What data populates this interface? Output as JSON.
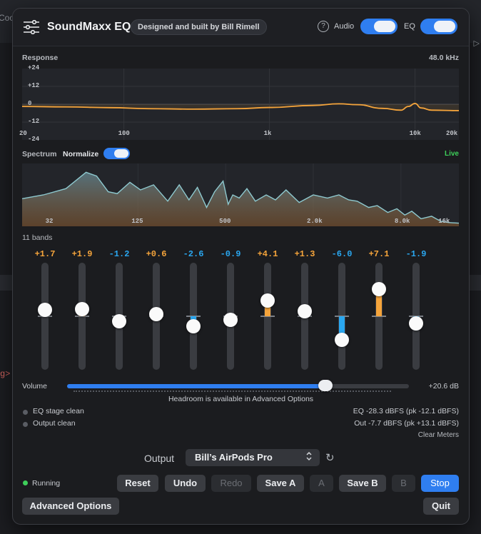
{
  "background": {
    "left_text": "Coo",
    "left_code": "g>",
    "right_arrow": "▷"
  },
  "header": {
    "title": "SoundMaxx EQ",
    "badge": "Designed and built by Bill Rimell",
    "audio_label": "Audio",
    "audio_on": true,
    "eq_label": "EQ",
    "eq_on": true,
    "help_glyph": "?"
  },
  "response": {
    "label": "Response",
    "rate": "48.0 kHz",
    "y_ticks": [
      "+24",
      "+12",
      "0",
      "-12",
      "-24"
    ],
    "x_ticks": [
      "20",
      "100",
      "1k",
      "10k",
      "20k"
    ]
  },
  "spectrum": {
    "label": "Spectrum",
    "normalize_label": "Normalize",
    "normalize_on": true,
    "live_label": "Live",
    "x_ticks": [
      "32",
      "125",
      "500",
      "2.0k",
      "8.0k",
      "16k"
    ]
  },
  "chart_data": [
    {
      "type": "line",
      "title": "Response",
      "xlabel": "",
      "ylabel": "",
      "xscale": "log",
      "xlim": [
        20,
        20000
      ],
      "ylim": [
        -24,
        24
      ],
      "series": [
        {
          "x": [
            20,
            40,
            80,
            150,
            300,
            600,
            1000,
            2000,
            3000,
            4000,
            6000,
            8000,
            9000,
            10000,
            11000,
            13000,
            20000
          ],
          "values": [
            -1.5,
            -1.8,
            -2.3,
            -3.0,
            -3.3,
            -3.0,
            -2.2,
            -0.8,
            0.3,
            -0.3,
            -2.8,
            -4.0,
            -1.5,
            0.5,
            -2.5,
            -4.0,
            -4.3
          ]
        }
      ]
    },
    {
      "type": "area",
      "title": "Spectrum",
      "xlabel": "",
      "ylabel": "",
      "xscale": "log",
      "xlim": [
        20,
        20000
      ],
      "ylim": [
        0,
        1
      ],
      "series": [
        {
          "x": [
            20,
            28,
            40,
            55,
            65,
            78,
            90,
            110,
            130,
            160,
            200,
            240,
            280,
            320,
            370,
            420,
            480,
            520,
            560,
            620,
            700,
            800,
            950,
            1100,
            1300,
            1600,
            2000,
            2500,
            3000,
            3500,
            4000,
            4800,
            5500,
            6500,
            7500,
            8500,
            9500,
            11000,
            13000,
            15000,
            17000,
            20000
          ],
          "values": [
            0.44,
            0.5,
            0.6,
            0.86,
            0.8,
            0.55,
            0.52,
            0.7,
            0.58,
            0.66,
            0.4,
            0.66,
            0.42,
            0.62,
            0.3,
            0.55,
            0.72,
            0.35,
            0.5,
            0.45,
            0.6,
            0.4,
            0.5,
            0.42,
            0.58,
            0.38,
            0.5,
            0.45,
            0.5,
            0.42,
            0.4,
            0.3,
            0.33,
            0.22,
            0.28,
            0.18,
            0.24,
            0.12,
            0.16,
            0.08,
            0.06,
            0.05
          ]
        }
      ]
    }
  ],
  "bands": {
    "label": "11 bands",
    "gains": [
      "+1.7",
      "+1.9",
      "-1.2",
      "+0.6",
      "-2.6",
      "-0.9",
      "+4.1",
      "+1.3",
      "-6.0",
      "+7.1",
      "-1.9"
    ],
    "values": [
      1.7,
      1.9,
      -1.2,
      0.6,
      -2.6,
      -0.9,
      4.1,
      1.3,
      -6.0,
      7.1,
      -1.9
    ],
    "range": [
      -12,
      12
    ]
  },
  "volume": {
    "label": "Volume",
    "value": "+20.6 dB",
    "level": 0.755,
    "headroom_note": "Headroom is available in Advanced Options"
  },
  "status": {
    "eq_stage": "EQ stage clean",
    "output": "Output clean",
    "eq_meter": "EQ -28.3 dBFS (pk -12.1 dBFS)",
    "out_meter": "Out -7.7 dBFS (pk +13.1 dBFS)",
    "clear_meters": "Clear Meters"
  },
  "output": {
    "label": "Output",
    "device": "Bill’s AirPods Pro",
    "chevron": "⌃⌄",
    "refresh": "↻"
  },
  "footer": {
    "running": "Running",
    "reset": "Reset",
    "undo": "Undo",
    "redo": "Redo",
    "save_a": "Save A",
    "a": "A",
    "save_b": "Save B",
    "b": "B",
    "stop": "Stop",
    "advanced": "Advanced Options",
    "quit": "Quit"
  },
  "colors": {
    "accent": "#2f7ef0",
    "positive": "#f5a43b",
    "negative": "#2aa7f0",
    "running": "#3ecf5a",
    "curve": "#f5a43b",
    "spectrum_line": "#8ec9cf"
  }
}
